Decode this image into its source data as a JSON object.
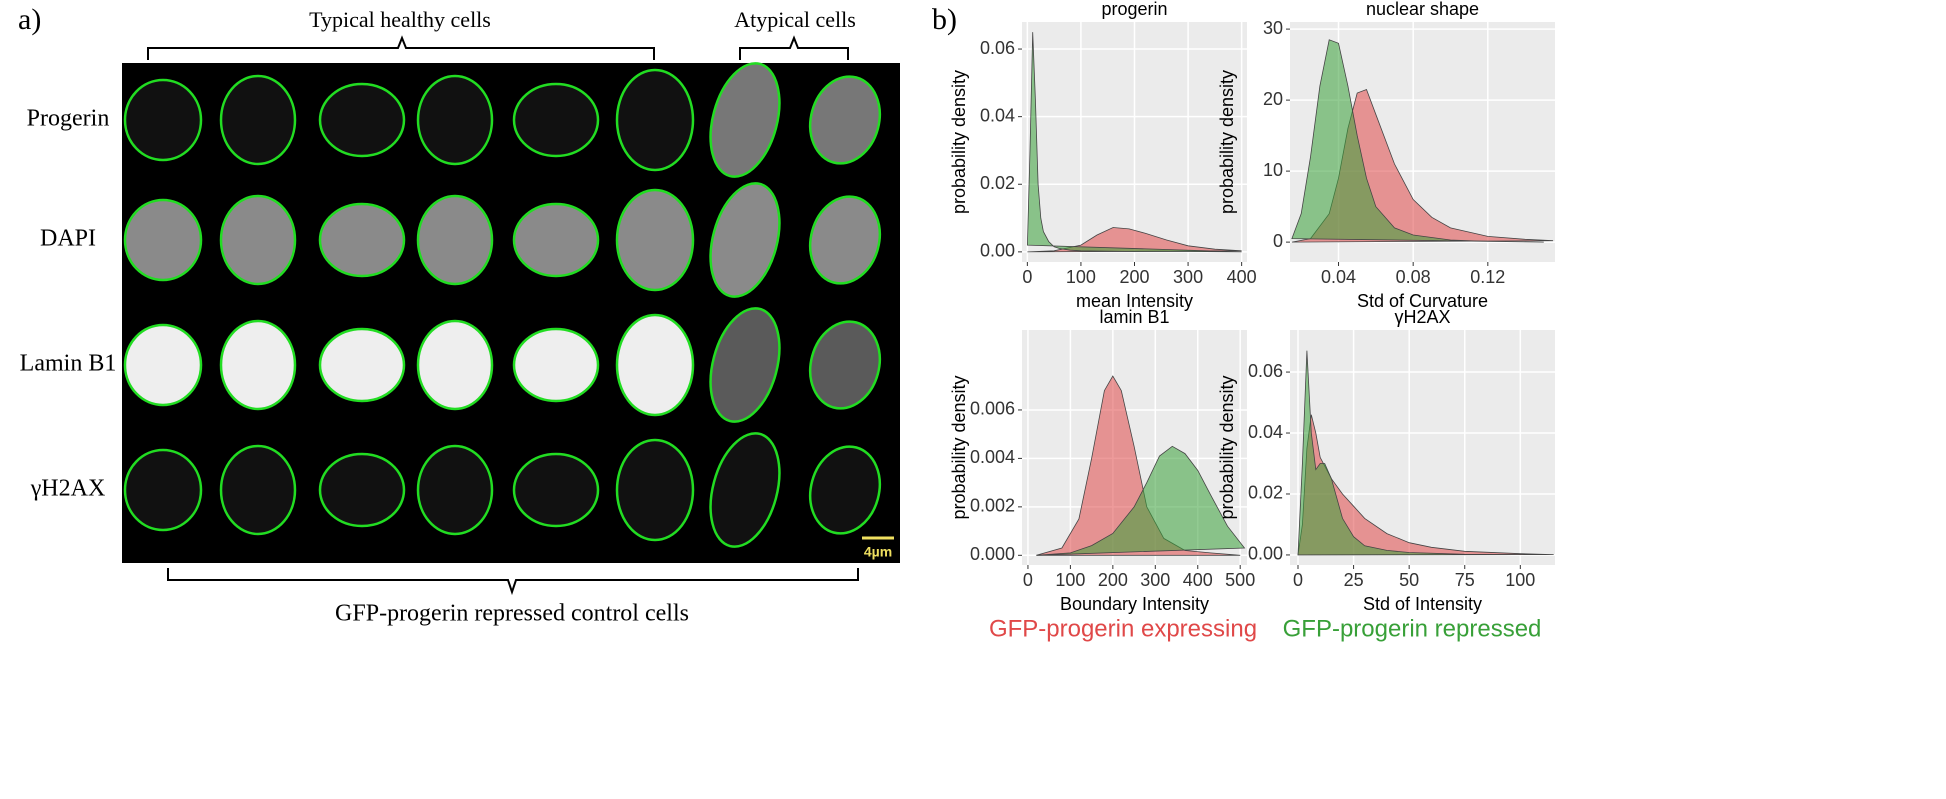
{
  "panel_a": {
    "label": "a)",
    "groups": [
      "Typical healthy cells",
      "Atypical cells"
    ],
    "rows": [
      "Progerin",
      "DAPI",
      "Lamin B1",
      "γH2AX"
    ],
    "scale_bar": "4µm",
    "footer": "GFP-progerin repressed control cells"
  },
  "panel_b_label": "b)",
  "chart_data": [
    {
      "type": "density",
      "title": "progerin",
      "x_label": "mean Intensity",
      "y_label": "probability density",
      "xlim": [
        -10,
        410
      ],
      "ylim": [
        -0.003,
        0.068
      ],
      "xticks": [
        0,
        100,
        200,
        300,
        400
      ],
      "yticks": [
        {
          "value": 0,
          "label": "0.00"
        },
        0.02,
        0.04,
        0.06
      ],
      "grid": true,
      "series": [
        {
          "name": "GFP-progerin expressing",
          "color": "#e04848",
          "x": [
            0,
            50,
            100,
            130,
            160,
            190,
            220,
            260,
            300,
            350,
            400
          ],
          "values": [
            0,
            0.0003,
            0.002,
            0.005,
            0.0072,
            0.0068,
            0.0055,
            0.0035,
            0.0018,
            0.0008,
            0.0003
          ]
        },
        {
          "name": "GFP-progerin repressed",
          "color": "#38a038",
          "x": [
            0,
            5,
            10,
            15,
            20,
            25,
            30,
            40,
            50,
            60,
            80,
            100,
            150,
            200,
            300,
            400
          ],
          "values": [
            0.002,
            0.03,
            0.065,
            0.045,
            0.02,
            0.01,
            0.006,
            0.003,
            0.0015,
            0.001,
            0.0005,
            0.0003,
            0.0002,
            0.0001,
            0.0001,
            0
          ]
        }
      ]
    },
    {
      "type": "density",
      "title": "nuclear shape",
      "x_label": "Std of Curvature",
      "y_label": "probability density",
      "xlim": [
        0.014,
        0.156
      ],
      "ylim": [
        -2.8,
        31
      ],
      "xticks": [
        0.04,
        0.08,
        0.12
      ],
      "yticks": [
        0,
        10,
        20,
        30
      ],
      "grid": true,
      "series": [
        {
          "name": "GFP-progerin expressing",
          "color": "#e04848",
          "x": [
            0.015,
            0.025,
            0.035,
            0.04,
            0.045,
            0.05,
            0.055,
            0.06,
            0.07,
            0.08,
            0.09,
            0.1,
            0.12,
            0.14,
            0.155
          ],
          "values": [
            0,
            0.5,
            4,
            9,
            16,
            21,
            21.5,
            18,
            11,
            6,
            3.5,
            2,
            0.8,
            0.4,
            0.2
          ]
        },
        {
          "name": "GFP-progerin repressed",
          "color": "#38a038",
          "x": [
            0.015,
            0.02,
            0.025,
            0.03,
            0.035,
            0.04,
            0.045,
            0.05,
            0.055,
            0.06,
            0.07,
            0.08,
            0.1,
            0.12,
            0.15
          ],
          "values": [
            0.5,
            4,
            12,
            22,
            28.5,
            28,
            22,
            15,
            9,
            5,
            2,
            1,
            0.3,
            0.1,
            0
          ]
        }
      ]
    },
    {
      "type": "density",
      "title": "lamin B1",
      "x_label": "Boundary Intensity",
      "y_label": "probability density",
      "xlim": [
        -14,
        516
      ],
      "ylim": [
        -0.0004,
        0.0093
      ],
      "xticks": [
        0,
        100,
        200,
        300,
        400,
        500
      ],
      "yticks": [
        {
          "value": 0,
          "label": "0.000"
        },
        0.002,
        0.004,
        0.006
      ],
      "grid": true,
      "series": [
        {
          "name": "GFP-progerin expressing",
          "color": "#e04848",
          "x": [
            20,
            80,
            120,
            150,
            180,
            200,
            220,
            250,
            280,
            320,
            370,
            430,
            500
          ],
          "values": [
            0,
            0.0003,
            0.0015,
            0.004,
            0.0068,
            0.0074,
            0.0068,
            0.0045,
            0.002,
            0.0007,
            0.0002,
            0.0001,
            0
          ]
        },
        {
          "name": "GFP-progerin repressed",
          "color": "#38a038",
          "x": [
            20,
            100,
            150,
            200,
            250,
            280,
            310,
            340,
            370,
            400,
            430,
            470,
            510
          ],
          "values": [
            0,
            0.0001,
            0.0004,
            0.0009,
            0.002,
            0.003,
            0.0041,
            0.0045,
            0.0042,
            0.0035,
            0.0025,
            0.0012,
            0.0003
          ]
        }
      ]
    },
    {
      "type": "density",
      "title": "γH2AX",
      "x_label": "Std of Intensity",
      "y_label": "probability density",
      "xlim": [
        -3.6,
        115.6
      ],
      "ylim": [
        -0.0033,
        0.0738
      ],
      "xticks": [
        0,
        25,
        50,
        75,
        100
      ],
      "yticks": [
        {
          "value": 0,
          "label": "0.00"
        },
        0.02,
        0.04,
        0.06
      ],
      "grid": true,
      "series": [
        {
          "name": "GFP-progerin expressing",
          "color": "#e04848",
          "x": [
            0,
            2,
            4,
            6,
            8,
            10,
            15,
            20,
            25,
            30,
            40,
            50,
            60,
            75,
            100,
            115
          ],
          "values": [
            0,
            0.01,
            0.035,
            0.046,
            0.04,
            0.032,
            0.025,
            0.02,
            0.016,
            0.012,
            0.007,
            0.004,
            0.0025,
            0.0012,
            0.0004,
            0.0001
          ]
        },
        {
          "name": "GFP-progerin repressed",
          "color": "#38a038",
          "x": [
            0,
            2,
            4,
            6,
            8,
            10,
            12,
            15,
            20,
            25,
            30,
            40,
            50,
            75,
            100
          ],
          "values": [
            0,
            0.03,
            0.067,
            0.04,
            0.028,
            0.03,
            0.03,
            0.025,
            0.012,
            0.006,
            0.003,
            0.0015,
            0.0008,
            0.0002,
            0.0001
          ]
        }
      ]
    }
  ]
}
